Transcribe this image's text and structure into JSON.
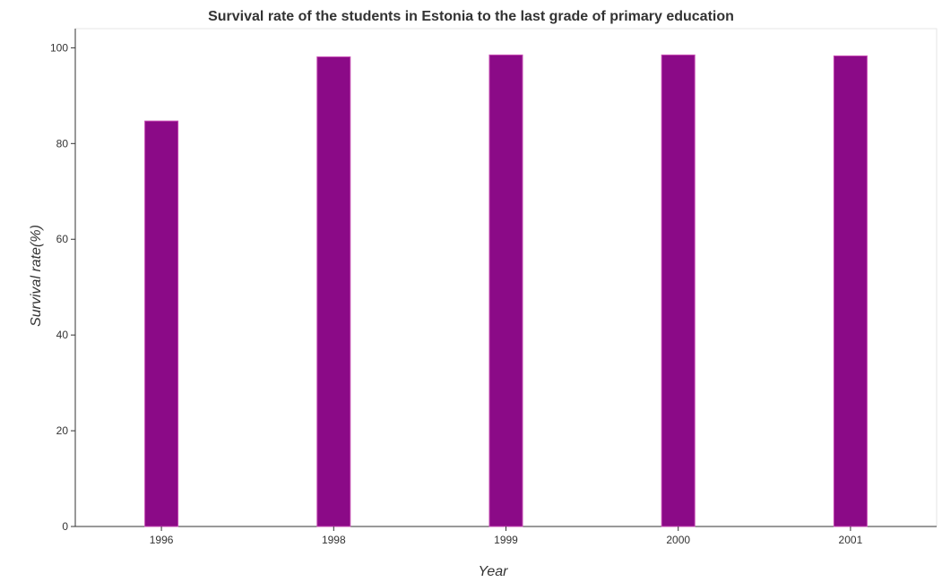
{
  "chart_data": {
    "type": "bar",
    "title": "Survival rate of the students in Estonia to the last grade of primary education",
    "xlabel": "Year",
    "ylabel": "Survival rate(%)",
    "categories": [
      "1996",
      "1998",
      "1999",
      "2000",
      "2001"
    ],
    "values": [
      84.7,
      98.1,
      98.5,
      98.5,
      98.3
    ],
    "ylim": [
      0,
      104
    ],
    "yticks": [
      0,
      20,
      40,
      60,
      80,
      100
    ],
    "grid": false,
    "bar_color": "#8b0a87",
    "bar_edge_color": "#c64bb3"
  }
}
